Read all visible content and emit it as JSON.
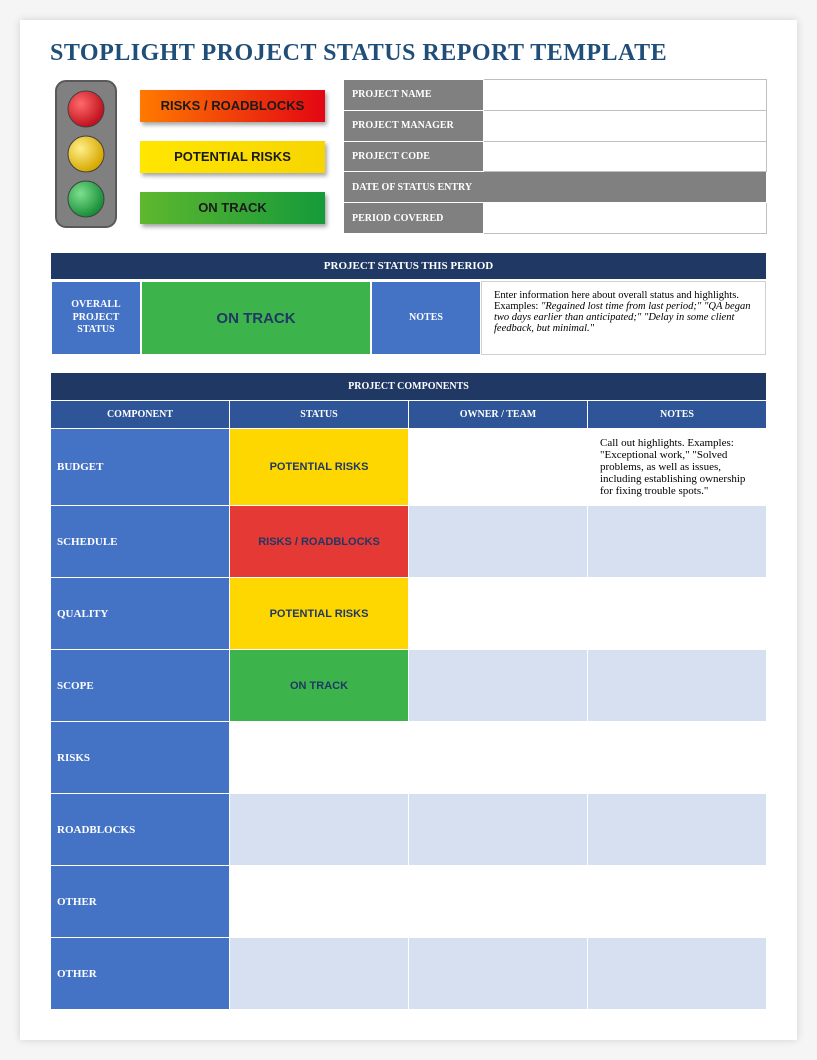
{
  "title": "STOPLIGHT PROJECT STATUS REPORT TEMPLATE",
  "colors": {
    "title": "#1f4e79",
    "sectionBar": "#1f3864",
    "headerCell": "#2e5597",
    "labelCell": "#4472c4",
    "infoLabel": "#808080",
    "lightBlue": "#d6e0f0",
    "green": "#3cb44b",
    "yellow": "#ffd700",
    "red": "#e53935"
  },
  "stoplight": {
    "body": "#808080",
    "trim": "#595959",
    "red": "#e30613",
    "yellow": "#f2c400",
    "green": "#2bb24c"
  },
  "legend": {
    "red": "RISKS / ROADBLOCKS",
    "yellow": "POTENTIAL RISKS",
    "green": "ON TRACK",
    "redGradient": [
      "#ff7a00",
      "#e30613"
    ],
    "yellowGradient": [
      "#ffe600",
      "#f7d500"
    ],
    "greenGradient": [
      "#5eb72e",
      "#159a3a"
    ]
  },
  "infoFields": {
    "name": {
      "label": "PROJECT NAME",
      "value": ""
    },
    "manager": {
      "label": "PROJECT MANAGER",
      "value": ""
    },
    "code": {
      "label": "PROJECT CODE",
      "value": ""
    },
    "dateFull": {
      "label": "DATE OF STATUS ENTRY"
    },
    "period": {
      "label": "PERIOD COVERED",
      "value": ""
    }
  },
  "statusSection": {
    "header": "PROJECT STATUS THIS PERIOD",
    "overallLabel": "OVERALL PROJECT STATUS",
    "overallValue": "ON TRACK",
    "overallColor": "green",
    "notesLabel": "NOTES",
    "notesIntro": "Enter information here about overall status and highlights. Examples: ",
    "notesExample": "\"Regained lost time from last period;\" \"QA began two days earlier than anticipated;\" \"Delay in some client feedback, but minimal.\""
  },
  "componentsSection": {
    "header": "PROJECT COMPONENTS",
    "columns": {
      "component": "COMPONENT",
      "status": "STATUS",
      "owner": "OWNER / TEAM",
      "notes": "NOTES"
    },
    "rows": [
      {
        "component": "BUDGET",
        "status": "POTENTIAL RISKS",
        "statusColor": "yellow",
        "rowBg": "white",
        "owner": "",
        "notes": "Call out highlights. Examples: \"Exceptional work,\" \"Solved problems, as well as issues, including establishing ownership for fixing trouble spots.\""
      },
      {
        "component": "SCHEDULE",
        "status": "RISKS / ROADBLOCKS",
        "statusColor": "red",
        "rowBg": "light",
        "owner": "",
        "notes": ""
      },
      {
        "component": "QUALITY",
        "status": "POTENTIAL RISKS",
        "statusColor": "yellow",
        "rowBg": "white",
        "owner": "",
        "notes": ""
      },
      {
        "component": "SCOPE",
        "status": "ON TRACK",
        "statusColor": "green",
        "rowBg": "light",
        "owner": "",
        "notes": ""
      },
      {
        "component": "RISKS",
        "status": "",
        "statusColor": "",
        "rowBg": "white",
        "owner": "",
        "notes": ""
      },
      {
        "component": "ROADBLOCKS",
        "status": "",
        "statusColor": "",
        "rowBg": "light",
        "owner": "",
        "notes": ""
      },
      {
        "component": "OTHER",
        "status": "",
        "statusColor": "",
        "rowBg": "white",
        "owner": "",
        "notes": ""
      },
      {
        "component": "OTHER",
        "status": "",
        "statusColor": "",
        "rowBg": "light",
        "owner": "",
        "notes": ""
      }
    ]
  }
}
